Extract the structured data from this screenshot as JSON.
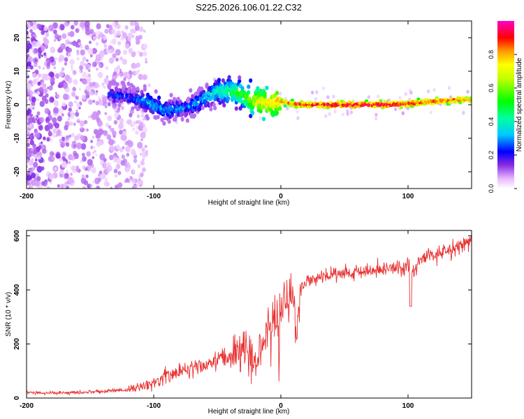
{
  "title": "S225.2026.106.01.22.C32",
  "chart_data": [
    {
      "type": "heatmap",
      "title": "S225.2026.106.01.22.C32",
      "xlabel": "Height of straight line (km)",
      "ylabel": "Frequency (Hz)",
      "xlim": [
        -200,
        150
      ],
      "ylim": [
        -25,
        25
      ],
      "xticks": [
        -200,
        -100,
        0,
        100
      ],
      "yticks": [
        -20,
        -10,
        0,
        10,
        20
      ],
      "colorbar": {
        "label": "Normalized spectral amplitude",
        "range": [
          0,
          1
        ],
        "ticks": [
          0,
          0.2,
          0.4,
          0.6,
          0.8
        ]
      },
      "ridge": {
        "x": [
          -135,
          -120,
          -110,
          -100,
          -90,
          -80,
          -70,
          -60,
          -50,
          -40,
          -30,
          -20,
          -10,
          0,
          10,
          20,
          40,
          60,
          80,
          100,
          120,
          140,
          150
        ],
        "frequency": [
          3,
          2.5,
          1.5,
          0,
          -1.5,
          -1,
          -0.5,
          2,
          4,
          4,
          3,
          1,
          0.5,
          1,
          0.2,
          0,
          0,
          0,
          0,
          0.3,
          1,
          1.5,
          1.5
        ],
        "amplitude": [
          0.25,
          0.25,
          0.3,
          0.35,
          0.3,
          0.3,
          0.3,
          0.35,
          0.4,
          0.5,
          0.55,
          0.7,
          0.75,
          0.8,
          0.85,
          0.9,
          0.95,
          0.95,
          0.95,
          0.9,
          0.9,
          0.85,
          0.8
        ]
      }
    },
    {
      "type": "line",
      "xlabel": "Height of straight line (km)",
      "ylabel": "SNR (10 * v/v)",
      "xlim": [
        -200,
        150
      ],
      "ylim": [
        0,
        620
      ],
      "xticks": [
        -200,
        -100,
        0,
        100
      ],
      "yticks": [
        0,
        200,
        400,
        600
      ],
      "color": "#e83030",
      "series": [
        {
          "name": "SNR",
          "x": [
            -200,
            -180,
            -160,
            -140,
            -120,
            -110,
            -100,
            -90,
            -80,
            -70,
            -60,
            -50,
            -40,
            -30,
            -20,
            -10,
            -5,
            0,
            5,
            10,
            12,
            15,
            20,
            30,
            40,
            50,
            60,
            70,
            80,
            90,
            100,
            105,
            110,
            120,
            130,
            140,
            150
          ],
          "y": [
            20,
            20,
            20,
            25,
            30,
            40,
            60,
            80,
            100,
            110,
            120,
            140,
            160,
            200,
            150,
            250,
            300,
            330,
            360,
            380,
            250,
            400,
            430,
            440,
            460,
            460,
            470,
            470,
            480,
            480,
            490,
            460,
            520,
            530,
            540,
            560,
            580
          ]
        }
      ]
    }
  ],
  "colors": {
    "snr_line": "#e83030",
    "axis": "#000000",
    "background": "#ffffff"
  }
}
